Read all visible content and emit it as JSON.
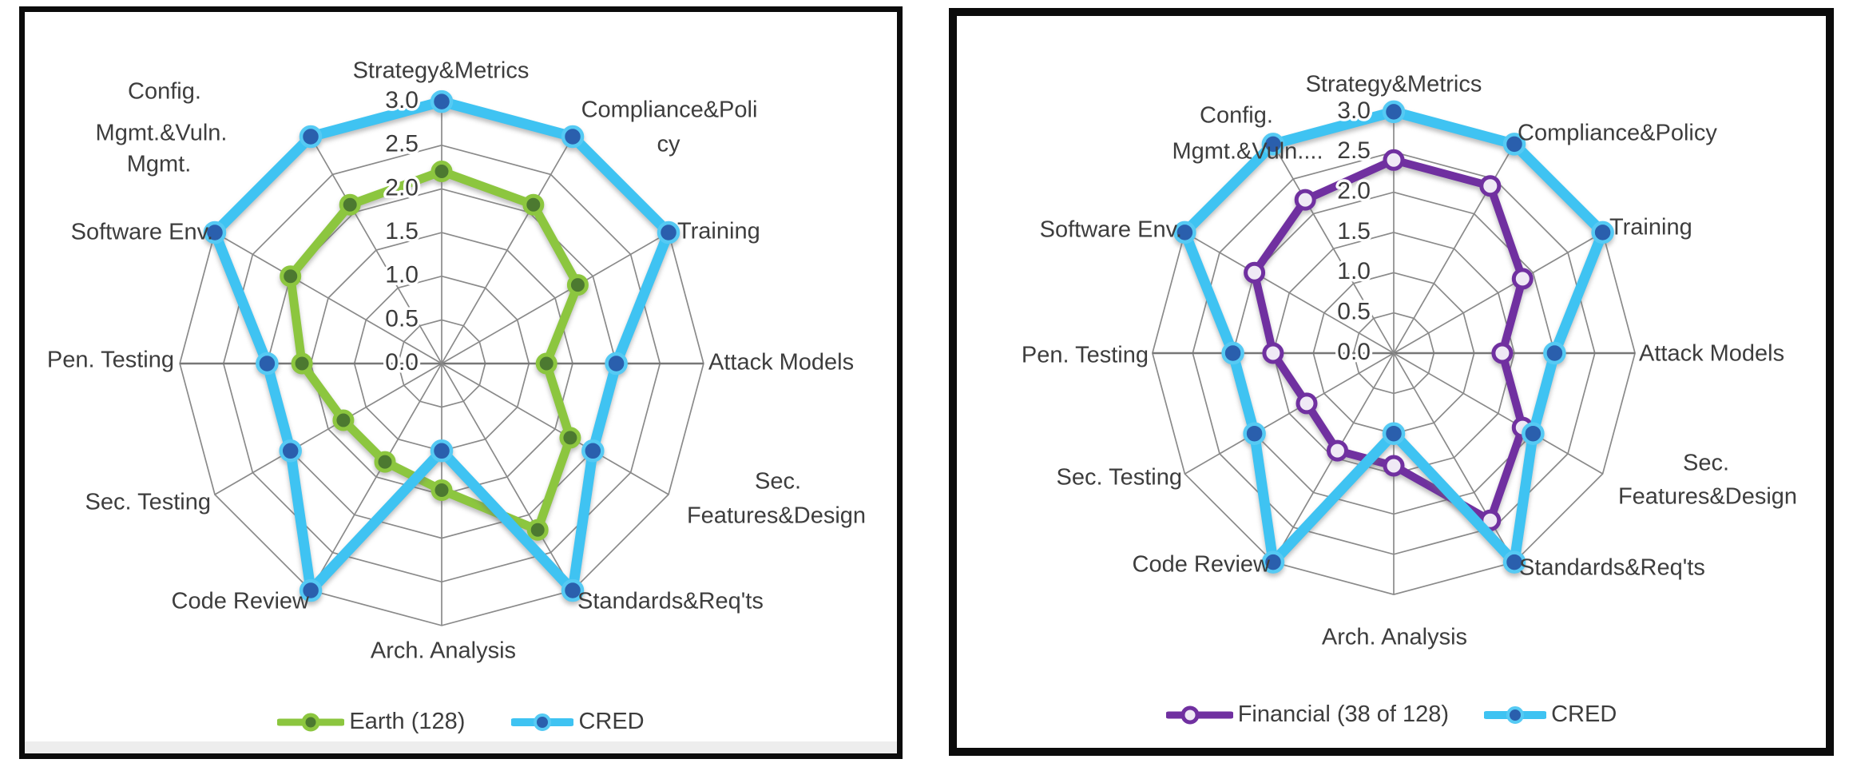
{
  "background": "#ffffff",
  "grid_color": "#8a8a8a",
  "text_color": "#3d3d3d",
  "panels": [
    {
      "name": "earth-vs-cred",
      "legend": [
        {
          "label": "Earth (128)",
          "line_color": "#8CC63F",
          "marker_fill": "#4C7930",
          "marker_stroke": "#8CC63F"
        },
        {
          "label": "CRED",
          "line_color": "#3FC3F2",
          "marker_fill": "#2A5FAD",
          "marker_stroke": "#55CAF4"
        }
      ]
    },
    {
      "name": "financial-vs-cred",
      "legend": [
        {
          "label": "Financial (38 of 128)",
          "line_color": "#7030A0",
          "marker_fill": "#EFE9F5",
          "marker_stroke": "#7030A0"
        },
        {
          "label": "CRED",
          "line_color": "#3FC3F2",
          "marker_fill": "#2A5FAD",
          "marker_stroke": "#55CAF4"
        }
      ]
    }
  ],
  "chart_data": [
    {
      "type": "radar",
      "title": "",
      "categories": [
        "Strategy&Metrics",
        "Compliance&Policy",
        "Training",
        "Attack Models",
        "Sec. Features&Design",
        "Standards&Req'ts",
        "Arch. Analysis",
        "Code Review",
        "Sec. Testing",
        "Pen. Testing",
        "Software Env.",
        "Config. Mgmt.&Vuln. Mgmt."
      ],
      "axis_display": [
        [
          "Strategy&Metrics"
        ],
        [
          "Compliance&Poli",
          "cy"
        ],
        [
          "Training"
        ],
        [
          "Attack Models"
        ],
        [
          "Sec.",
          "Features&Design"
        ],
        [
          "Standards&Req'ts"
        ],
        [
          "Arch. Analysis"
        ],
        [
          "Code Review"
        ],
        [
          "Sec. Testing"
        ],
        [
          "Pen. Testing"
        ],
        [
          "Software Env."
        ],
        [
          "Config.",
          "Mgmt.&Vuln.",
          "Mgmt."
        ]
      ],
      "series": [
        {
          "name": "Earth (128)",
          "color": "#8CC63F",
          "marker_fill": "#4C7930",
          "marker_stroke": "#8CC63F",
          "values": [
            2.2,
            2.1,
            1.8,
            1.2,
            1.7,
            2.2,
            1.45,
            1.3,
            1.3,
            1.6,
            2.0,
            2.1
          ]
        },
        {
          "name": "CRED",
          "color": "#3FC3F2",
          "marker_fill": "#2A5FAD",
          "marker_stroke": "#55CAF4",
          "values": [
            3.0,
            3.0,
            3.0,
            2.0,
            2.0,
            3.0,
            1.0,
            3.0,
            2.0,
            2.0,
            3.0,
            3.0
          ]
        }
      ],
      "rlim": [
        0,
        3
      ],
      "rticks": [
        0,
        0.5,
        1,
        1.5,
        2,
        2.5,
        3
      ],
      "rtick_labels": [
        "0.0",
        "0.5",
        "1.0",
        "1.5",
        "2.0",
        "2.5",
        "3.0"
      ],
      "grid": true,
      "legend_position": "bottom"
    },
    {
      "type": "radar",
      "title": "",
      "categories": [
        "Strategy&Metrics",
        "Compliance&Policy",
        "Training",
        "Attack Models",
        "Sec. Features&Design",
        "Standards&Req'ts",
        "Arch. Analysis",
        "Code Review",
        "Sec. Testing",
        "Pen. Testing",
        "Software Env.",
        "Config. Mgmt.&Vuln. Mgmt."
      ],
      "axis_display": [
        [
          "Strategy&Metrics"
        ],
        [
          "Compliance&Policy"
        ],
        [
          "Training"
        ],
        [
          "Attack Models"
        ],
        [
          "Sec.",
          "Features&Design"
        ],
        [
          "Standards&Req'ts"
        ],
        [
          "Arch. Analysis"
        ],
        [
          "Code Review"
        ],
        [
          "Sec. Testing"
        ],
        [
          "Pen. Testing"
        ],
        [
          "Software Env."
        ],
        [
          "Config.",
          "Mgmt.&Vuln...."
        ]
      ],
      "series": [
        {
          "name": "Financial (38 of 128)",
          "color": "#7030A0",
          "marker_fill": "#EFE9F5",
          "marker_stroke": "#7030A0",
          "values": [
            2.4,
            2.4,
            1.85,
            1.35,
            1.85,
            2.4,
            1.4,
            1.4,
            1.25,
            1.5,
            2.0,
            2.2
          ]
        },
        {
          "name": "CRED",
          "color": "#3FC3F2",
          "marker_fill": "#2A5FAD",
          "marker_stroke": "#55CAF4",
          "values": [
            3.0,
            3.0,
            3.0,
            2.0,
            2.0,
            3.0,
            1.0,
            3.0,
            2.0,
            2.0,
            3.0,
            3.0
          ]
        }
      ],
      "rlim": [
        0,
        3
      ],
      "rticks": [
        0,
        0.5,
        1,
        1.5,
        2,
        2.5,
        3
      ],
      "rtick_labels": [
        "0.0",
        "0.5",
        "1.0",
        "1.5",
        "2.0",
        "2.5",
        "3.0"
      ],
      "grid": true,
      "legend_position": "bottom"
    }
  ]
}
